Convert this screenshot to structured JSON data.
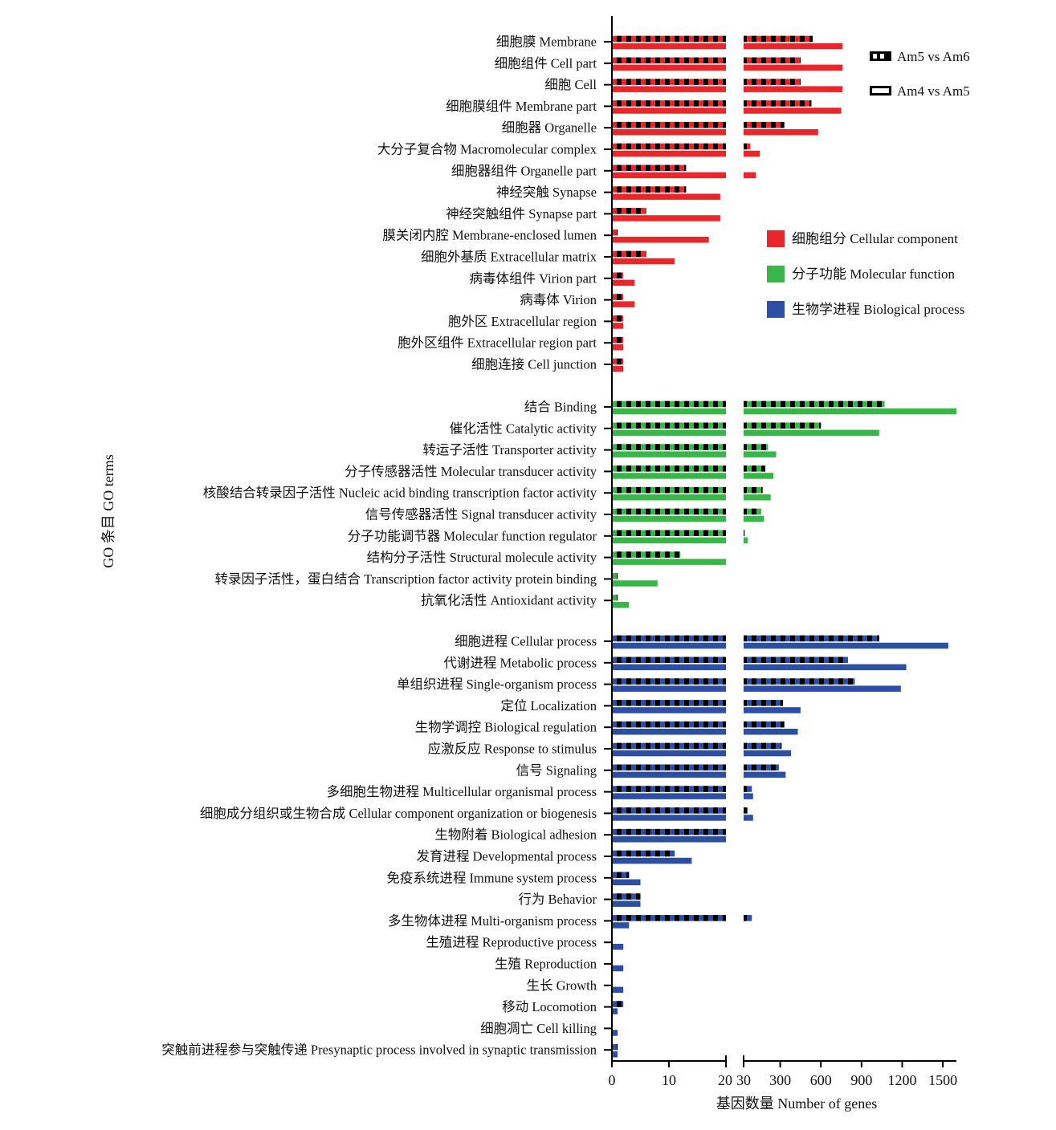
{
  "chart_data": {
    "type": "bar",
    "orientation": "horizontal",
    "broken_axis": true,
    "xlabel": "基因数量 Number of genes",
    "ylabel": "GO 条目 GO terms",
    "x_ticks_left": [
      0,
      10,
      20
    ],
    "x_ticks_right": [
      30,
      300,
      600,
      900,
      1200,
      1500
    ],
    "xlim_left": [
      0,
      20
    ],
    "xlim_right": [
      30,
      1600
    ],
    "pattern_legend": [
      {
        "name": "Am5 vs Am6",
        "style": "dashed"
      },
      {
        "name": "Am4 vs Am5",
        "style": "solid"
      }
    ],
    "category_legend": [
      {
        "name": "细胞组分 Cellular component",
        "color": "#e8262b"
      },
      {
        "name": "分子功能 Molecular function",
        "color": "#3ab54a"
      },
      {
        "name": "生物学进程 Biological process",
        "color": "#2c4ea3"
      }
    ],
    "groups": [
      {
        "category": "细胞组分 Cellular component",
        "color": "#e8262b",
        "terms": [
          {
            "label": "细胞膜 Membrane",
            "am5_vs_am6": 540,
            "am4_vs_am5": 760
          },
          {
            "label": "细胞组件 Cell part",
            "am5_vs_am6": 450,
            "am4_vs_am5": 760
          },
          {
            "label": "细胞 Cell",
            "am5_vs_am6": 450,
            "am4_vs_am5": 760
          },
          {
            "label": "细胞膜组件 Membrane part",
            "am5_vs_am6": 530,
            "am4_vs_am5": 750
          },
          {
            "label": "细胞器 Organelle",
            "am5_vs_am6": 330,
            "am4_vs_am5": 580
          },
          {
            "label": "大分子复合物 Macromolecular complex",
            "am5_vs_am6": 80,
            "am4_vs_am5": 150
          },
          {
            "label": "细胞器组件 Organelle part",
            "am5_vs_am6": 13,
            "am4_vs_am5": 120
          },
          {
            "label": "神经突触 Synapse",
            "am5_vs_am6": 13,
            "am4_vs_am5": 19
          },
          {
            "label": "神经突触组件 Synapse part",
            "am5_vs_am6": 6,
            "am4_vs_am5": 19
          },
          {
            "label": "膜关闭内腔 Membrane-enclosed lumen",
            "am5_vs_am6": 1,
            "am4_vs_am5": 17
          },
          {
            "label": "细胞外基质 Extracellular matrix",
            "am5_vs_am6": 6,
            "am4_vs_am5": 11
          },
          {
            "label": "病毒体组件 Virion part",
            "am5_vs_am6": 2,
            "am4_vs_am5": 4
          },
          {
            "label": "病毒体 Virion",
            "am5_vs_am6": 2,
            "am4_vs_am5": 4
          },
          {
            "label": "胞外区 Extracellular region",
            "am5_vs_am6": 2,
            "am4_vs_am5": 2
          },
          {
            "label": "胞外区组件 Extracellular region part",
            "am5_vs_am6": 2,
            "am4_vs_am5": 2
          },
          {
            "label": "细胞连接 Cell junction",
            "am5_vs_am6": 2,
            "am4_vs_am5": 2
          }
        ]
      },
      {
        "category": "分子功能 Molecular function",
        "color": "#3ab54a",
        "terms": [
          {
            "label": "结合 Binding",
            "am5_vs_am6": 1070,
            "am4_vs_am5": 1600
          },
          {
            "label": "催化活性 Catalytic activity",
            "am5_vs_am6": 600,
            "am4_vs_am5": 1030
          },
          {
            "label": "转运子活性 Transporter activity",
            "am5_vs_am6": 210,
            "am4_vs_am5": 270
          },
          {
            "label": "分子传感器活性 Molecular transducer activity",
            "am5_vs_am6": 190,
            "am4_vs_am5": 250
          },
          {
            "label": "核酸结合转录因子活性 Nucleic acid binding transcription factor activity",
            "am5_vs_am6": 170,
            "am4_vs_am5": 230
          },
          {
            "label": "信号传感器活性 Signal transducer activity",
            "am5_vs_am6": 160,
            "am4_vs_am5": 180
          },
          {
            "label": "分子功能调节器 Molecular function regulator",
            "am5_vs_am6": 35,
            "am4_vs_am5": 60
          },
          {
            "label": "结构分子活性 Structural molecule activity",
            "am5_vs_am6": 12,
            "am4_vs_am5": 20
          },
          {
            "label": "转录因子活性，蛋白结合 Transcription factor  activity protein binding",
            "am5_vs_am6": 1,
            "am4_vs_am5": 8
          },
          {
            "label": "抗氧化活性 Antioxidant activity",
            "am5_vs_am6": 1,
            "am4_vs_am5": 3
          }
        ]
      },
      {
        "category": "生物学进程 Biological process",
        "color": "#2c4ea3",
        "terms": [
          {
            "label": "细胞进程 Cellular process",
            "am5_vs_am6": 1030,
            "am4_vs_am5": 1540
          },
          {
            "label": "代谢进程 Metabolic process",
            "am5_vs_am6": 800,
            "am4_vs_am5": 1230
          },
          {
            "label": "单组织进程 Single-organism process",
            "am5_vs_am6": 850,
            "am4_vs_am5": 1190
          },
          {
            "label": "定位 Localization",
            "am5_vs_am6": 320,
            "am4_vs_am5": 450
          },
          {
            "label": "生物学调控 Biological regulation",
            "am5_vs_am6": 330,
            "am4_vs_am5": 430
          },
          {
            "label": "应激反应 Response to stimulus",
            "am5_vs_am6": 310,
            "am4_vs_am5": 380
          },
          {
            "label": "信号 Signaling",
            "am5_vs_am6": 290,
            "am4_vs_am5": 340
          },
          {
            "label": "多细胞生物进程 Multicellular organismal process",
            "am5_vs_am6": 90,
            "am4_vs_am5": 100
          },
          {
            "label": "细胞成分组织或生物合成 Cellular component organization or biogenesis",
            "am5_vs_am6": 60,
            "am4_vs_am5": 100
          },
          {
            "label": "生物附着 Biological adhesion",
            "am5_vs_am6": 20,
            "am4_vs_am5": 20
          },
          {
            "label": "发育进程 Developmental process",
            "am5_vs_am6": 11,
            "am4_vs_am5": 14
          },
          {
            "label": "免疫系统进程 Immune system process",
            "am5_vs_am6": 3,
            "am4_vs_am5": 5
          },
          {
            "label": "行为 Behavior",
            "am5_vs_am6": 5,
            "am4_vs_am5": 5
          },
          {
            "label": "多生物体进程 Multi-organism process",
            "am5_vs_am6": 90,
            "am4_vs_am5": 3
          },
          {
            "label": "生殖进程 Reproductive process",
            "am5_vs_am6": 0,
            "am4_vs_am5": 2
          },
          {
            "label": "生殖 Reproduction",
            "am5_vs_am6": 0,
            "am4_vs_am5": 2
          },
          {
            "label": "生长 Growth",
            "am5_vs_am6": 0,
            "am4_vs_am5": 2
          },
          {
            "label": "移动 Locomotion",
            "am5_vs_am6": 2,
            "am4_vs_am5": 1
          },
          {
            "label": "细胞凋亡 Cell killing",
            "am5_vs_am6": 0,
            "am4_vs_am5": 1
          },
          {
            "label": "突触前进程参与突触传递 Presynaptic process involved in synaptic transmission",
            "am5_vs_am6": 1,
            "am4_vs_am5": 1
          }
        ]
      }
    ]
  }
}
